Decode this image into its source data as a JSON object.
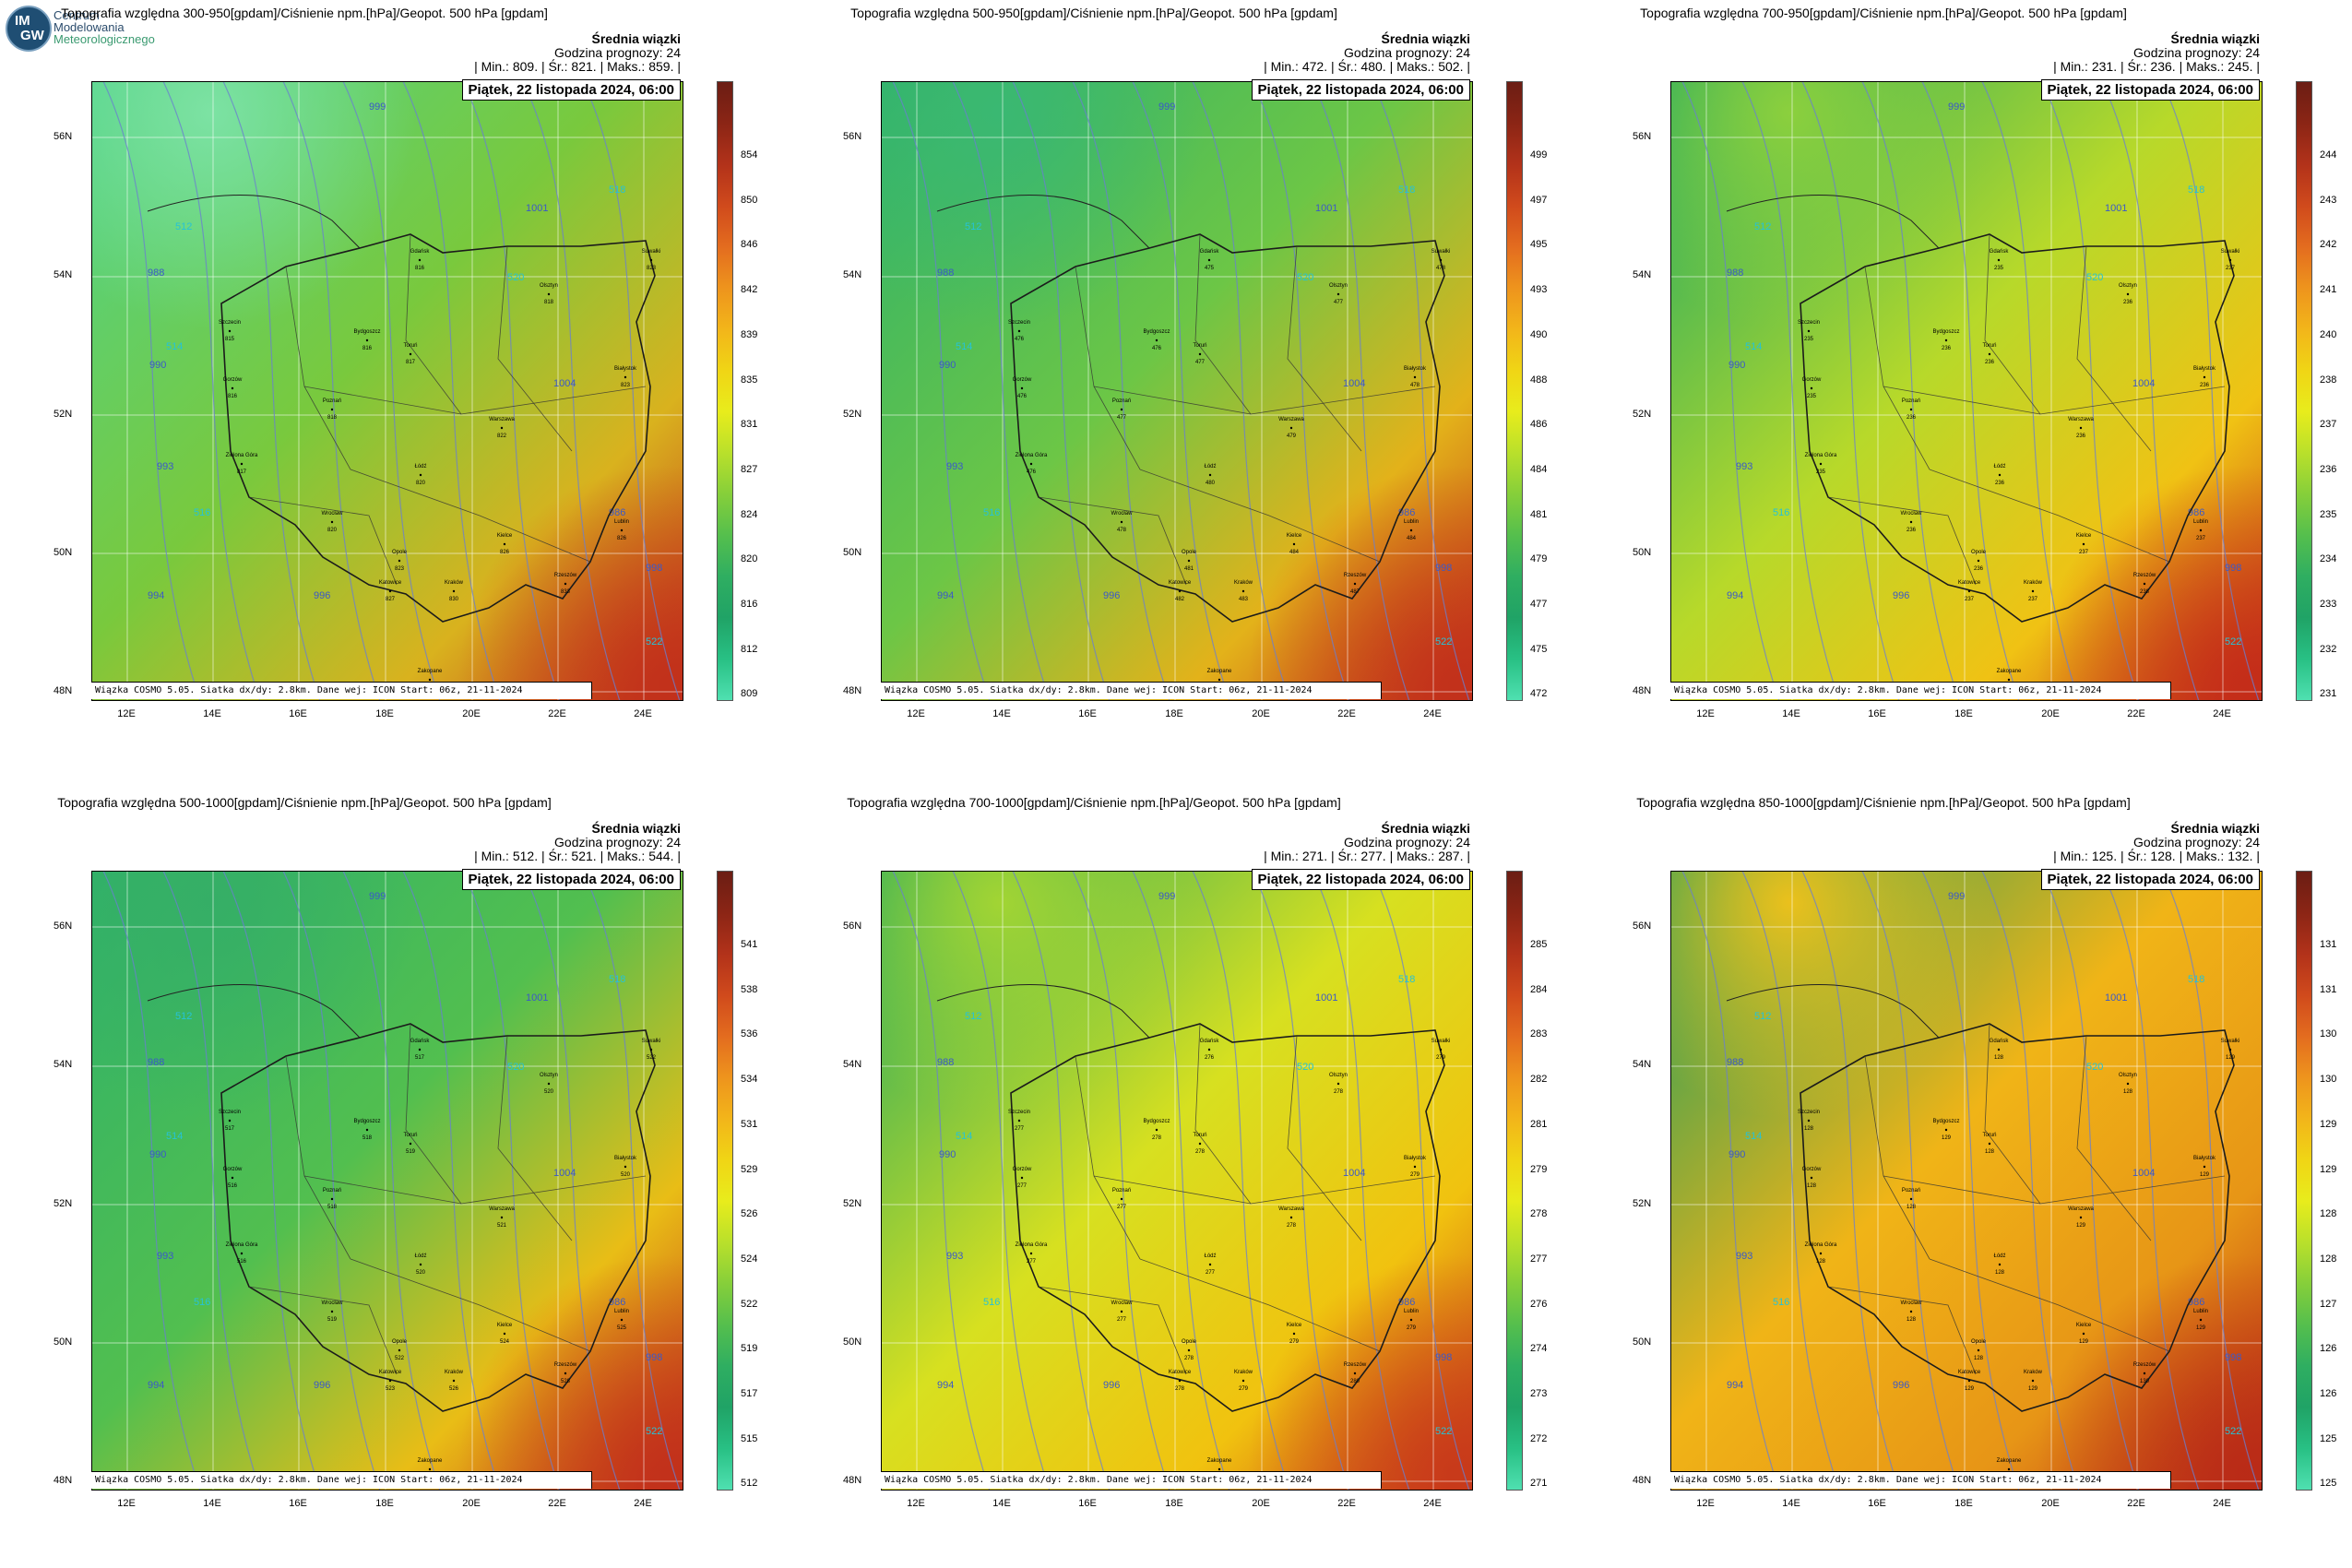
{
  "logo": {
    "abbr_top": "IM",
    "abbr_bottom": "GW",
    "line1": "Centrum",
    "line2": "Modelowania",
    "line3": "Meteorologicznego"
  },
  "common": {
    "average_label": "Średnia wiązki",
    "forecast_hour": "Godzina prognozy: 24",
    "date": "Piątek, 22 listopada 2024, 06:00",
    "footnote": "Wiązka COSMO 5.05. Siatka dx/dy: 2.8km. Dane wej: ICON Start: 06z, 21-11-2024",
    "lat_labels": [
      "56N",
      "54N",
      "52N",
      "50N",
      "48N"
    ],
    "lon_labels": [
      "12E",
      "14E",
      "16E",
      "18E",
      "20E",
      "22E",
      "24E"
    ],
    "min_label": "| Min.:",
    "avg_label": "| Śr.:",
    "max_label": "| Maks.:"
  },
  "panels": [
    {
      "title": "Topografia względna 300-950[gpdam]/Ciśnienie npm.[hPa]/Geopot. 500 hPa [gpdam]",
      "min": "809.",
      "avg": "821.",
      "max": "859.",
      "colorbar_ticks": [
        "854",
        "850",
        "846",
        "842",
        "839",
        "835",
        "831",
        "827",
        "824",
        "820",
        "816",
        "812",
        "809"
      ],
      "fill": {
        "north": "#4fd38a",
        "mid": "#79c93d",
        "south": "#d9b21e",
        "hot": "#c2301b",
        "coolspot": "#7ee3a6"
      }
    },
    {
      "title": "Topografia względna 500-950[gpdam]/Ciśnienie npm.[hPa]/Geopot. 500 hPa [gpdam]",
      "min": "472.",
      "avg": "480.",
      "max": "502.",
      "colorbar_ticks": [
        "499",
        "497",
        "495",
        "493",
        "490",
        "488",
        "486",
        "484",
        "481",
        "479",
        "477",
        "475",
        "472"
      ],
      "fill": {
        "north": "#2fb26a",
        "mid": "#6cc646",
        "south": "#e3b21a",
        "hot": "#c2301b",
        "coolspot": "#3ab873"
      }
    },
    {
      "title": "Topografia względna 700-950[gpdam]/Ciśnienie npm.[hPa]/Geopot. 500 hPa [gpdam]",
      "min": "231.",
      "avg": "236.",
      "max": "245.",
      "colorbar_ticks": [
        "244",
        "243",
        "242",
        "241",
        "240",
        "238",
        "237",
        "236",
        "235",
        "234",
        "233",
        "232",
        "231"
      ],
      "fill": {
        "north": "#1fa964",
        "mid": "#b7d92a",
        "south": "#f0c214",
        "hot": "#c42c19",
        "coolspot": "#8fd13c"
      }
    },
    {
      "title": "Topografia względna 500-1000[gpdam]/Ciśnienie npm.[hPa]/Geopot. 500 hPa [gpdam]",
      "min": "512.",
      "avg": "521.",
      "max": "544.",
      "colorbar_ticks": [
        "541",
        "538",
        "536",
        "534",
        "531",
        "529",
        "526",
        "524",
        "522",
        "519",
        "517",
        "515",
        "512"
      ],
      "fill": {
        "north": "#2fb26a",
        "mid": "#52bf4f",
        "south": "#e9bd16",
        "hot": "#c2301b",
        "coolspot": "#35ae66"
      }
    },
    {
      "title": "Topografia względna 700-1000[gpdam]/Ciśnienie npm.[hPa]/Geopot. 500 hPa [gpdam]",
      "min": "271.",
      "avg": "277.",
      "max": "287.",
      "colorbar_ticks": [
        "285",
        "284",
        "283",
        "282",
        "281",
        "279",
        "278",
        "277",
        "276",
        "274",
        "273",
        "272",
        "271"
      ],
      "fill": {
        "north": "#21a862",
        "mid": "#d7e020",
        "south": "#f1c20f",
        "hot": "#c8391a",
        "coolspot": "#a6d632"
      }
    },
    {
      "title": "Topografia względna 850-1000[gpdam]/Ciśnienie npm.[hPa]/Geopot. 500 hPa [gpdam]",
      "min": "125.",
      "avg": "128.",
      "max": "132.",
      "colorbar_ticks": [
        "131",
        "131",
        "130",
        "130",
        "129",
        "129",
        "128",
        "128",
        "127",
        "126",
        "126",
        "125",
        "125"
      ],
      "fill": {
        "north": "#1e9e5c",
        "mid": "#f0b417",
        "south": "#e79516",
        "hot": "#b92a17",
        "coolspot": "#f2c21a"
      }
    }
  ],
  "colorbar_colors": [
    "#6b1d14",
    "#8b2515",
    "#b2321a",
    "#d04a1c",
    "#e36c1f",
    "#ee941d",
    "#f2b51a",
    "#f0d515",
    "#e8ec1c",
    "#b9e02b",
    "#86cf3a",
    "#55bf4d",
    "#2fae61",
    "#20a366",
    "#28c084",
    "#4fe0b0"
  ],
  "isobars": [
    "988",
    "990",
    "993",
    "994",
    "996",
    "999",
    "1001",
    "1004",
    "986",
    "998",
    "993",
    "996"
  ],
  "geopot": [
    "512",
    "514",
    "516",
    "518",
    "520",
    "522",
    "524",
    "526"
  ],
  "cities": [
    {
      "name": "Gdańsk"
    },
    {
      "name": "Suwałki"
    },
    {
      "name": "Olsztyn"
    },
    {
      "name": "Szczecin"
    },
    {
      "name": "Bydgoszcz"
    },
    {
      "name": "Toruń"
    },
    {
      "name": "Gorzów"
    },
    {
      "name": "Białystok"
    },
    {
      "name": "Poznań"
    },
    {
      "name": "Warszawa"
    },
    {
      "name": "Zielona Góra"
    },
    {
      "name": "Łódź"
    },
    {
      "name": "Wrocław"
    },
    {
      "name": "Lublin"
    },
    {
      "name": "Kielce"
    },
    {
      "name": "Opole"
    },
    {
      "name": "Katowice"
    },
    {
      "name": "Kraków"
    },
    {
      "name": "Rzeszów"
    },
    {
      "name": "Zakopane"
    }
  ],
  "city_values": [
    [
      "816",
      "823",
      "818",
      "815",
      "816",
      "817",
      "816",
      "823",
      "818",
      "822",
      "817",
      "820",
      "820",
      "826",
      "826",
      "823",
      "827",
      "830",
      "833",
      "830"
    ],
    [
      "475",
      "478",
      "477",
      "476",
      "476",
      "477",
      "476",
      "478",
      "477",
      "479",
      "476",
      "480",
      "478",
      "484",
      "484",
      "481",
      "482",
      "483",
      "487",
      "487"
    ],
    [
      "235",
      "237",
      "236",
      "235",
      "236",
      "236",
      "235",
      "236",
      "236",
      "236",
      "235",
      "236",
      "236",
      "237",
      "237",
      "236",
      "237",
      "237",
      "238",
      "238"
    ],
    [
      "517",
      "522",
      "520",
      "517",
      "518",
      "519",
      "516",
      "520",
      "518",
      "521",
      "516",
      "520",
      "519",
      "525",
      "524",
      "522",
      "523",
      "526",
      "528",
      "528"
    ],
    [
      "276",
      "279",
      "278",
      "277",
      "278",
      "278",
      "277",
      "279",
      "277",
      "278",
      "277",
      "277",
      "277",
      "279",
      "279",
      "278",
      "278",
      "279",
      "280",
      "281"
    ],
    [
      "128",
      "129",
      "128",
      "128",
      "129",
      "128",
      "128",
      "129",
      "128",
      "129",
      "128",
      "128",
      "128",
      "129",
      "129",
      "128",
      "129",
      "129",
      "130",
      "131"
    ]
  ]
}
